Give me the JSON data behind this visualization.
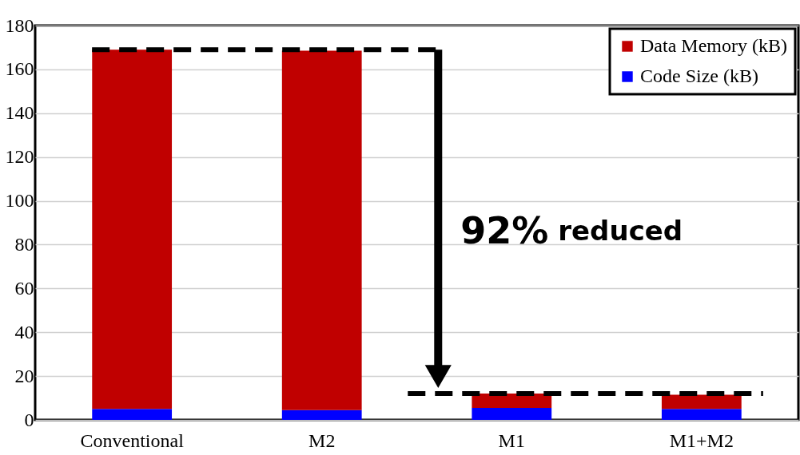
{
  "chart_data": {
    "type": "bar",
    "stacked": true,
    "categories": [
      "Conventional",
      "M2",
      "M1",
      "M1+M2"
    ],
    "series": [
      {
        "name": "Code Size (kB)",
        "color": "#0000ff",
        "values": [
          5,
          4.5,
          5.5,
          5
        ]
      },
      {
        "name": "Data Memory (kB)",
        "color": "#c00000",
        "values": [
          164,
          164,
          6.5,
          6.5
        ]
      }
    ],
    "ylim": [
      0,
      180
    ],
    "yticks": [
      0,
      20,
      40,
      60,
      80,
      100,
      120,
      140,
      160,
      180
    ],
    "grid": "y",
    "legend": "top right",
    "ref_lines": [
      {
        "axis": "y",
        "value": 169,
        "color": "#000000",
        "line_style": "dashed"
      },
      {
        "axis": "y",
        "value": 12,
        "color": "#000000",
        "line_style": "dashed"
      }
    ],
    "annotations": [
      "92% reduced"
    ]
  }
}
